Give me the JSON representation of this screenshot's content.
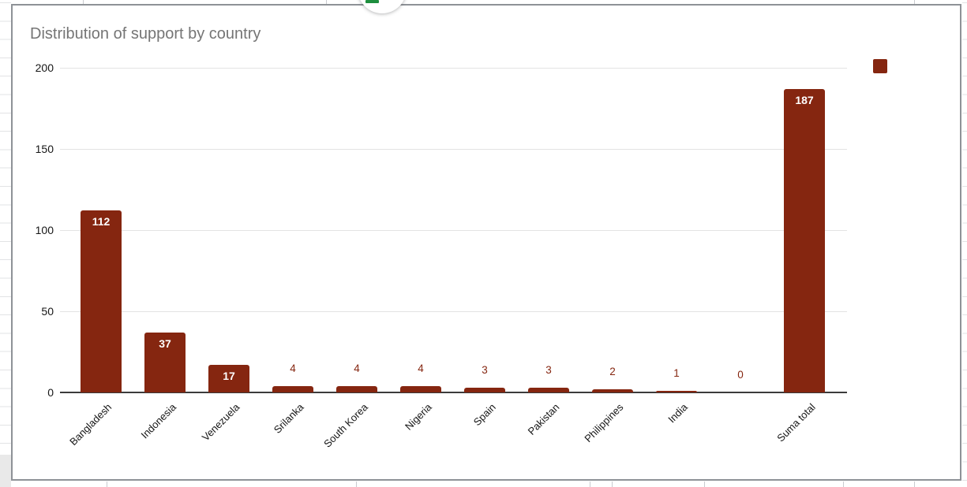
{
  "chart_data": {
    "type": "bar",
    "title": "Distribution of support by country",
    "categories": [
      "Bangladesh",
      "Indonesia",
      "Venezuela",
      "Srilanka",
      "South Korea",
      "Nigeria",
      "Spain",
      "Pakistan",
      "Philippines",
      "India",
      "",
      "Suma total"
    ],
    "values": [
      112,
      37,
      17,
      4,
      4,
      4,
      3,
      3,
      2,
      1,
      0,
      187
    ],
    "xlabel": "",
    "ylabel": "",
    "yticks": [
      0,
      50,
      100,
      150,
      200
    ],
    "ylim": [
      0,
      200
    ],
    "grid": true,
    "bar_color": "#852610",
    "title_color": "#757575",
    "value_label_inside_color": "#ffffff",
    "value_label_outside_color": "#852610",
    "legend": {
      "position": "top-right",
      "label": "",
      "swatch_color": "#852610"
    }
  },
  "floating_button": {
    "icon": "sheets-icon",
    "icon_color": "#1e8e3e"
  }
}
